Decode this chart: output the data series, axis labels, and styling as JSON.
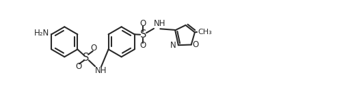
{
  "bg_color": "#ffffff",
  "line_color": "#2a2a2a",
  "lw": 1.5,
  "fs": 8.5,
  "fig_w": 5.1,
  "fig_h": 1.48,
  "dpi": 100,
  "xlim": [
    -0.3,
    10.2
  ],
  "ylim": [
    -0.5,
    3.0
  ],
  "r": 0.52,
  "iz_r": 0.38
}
